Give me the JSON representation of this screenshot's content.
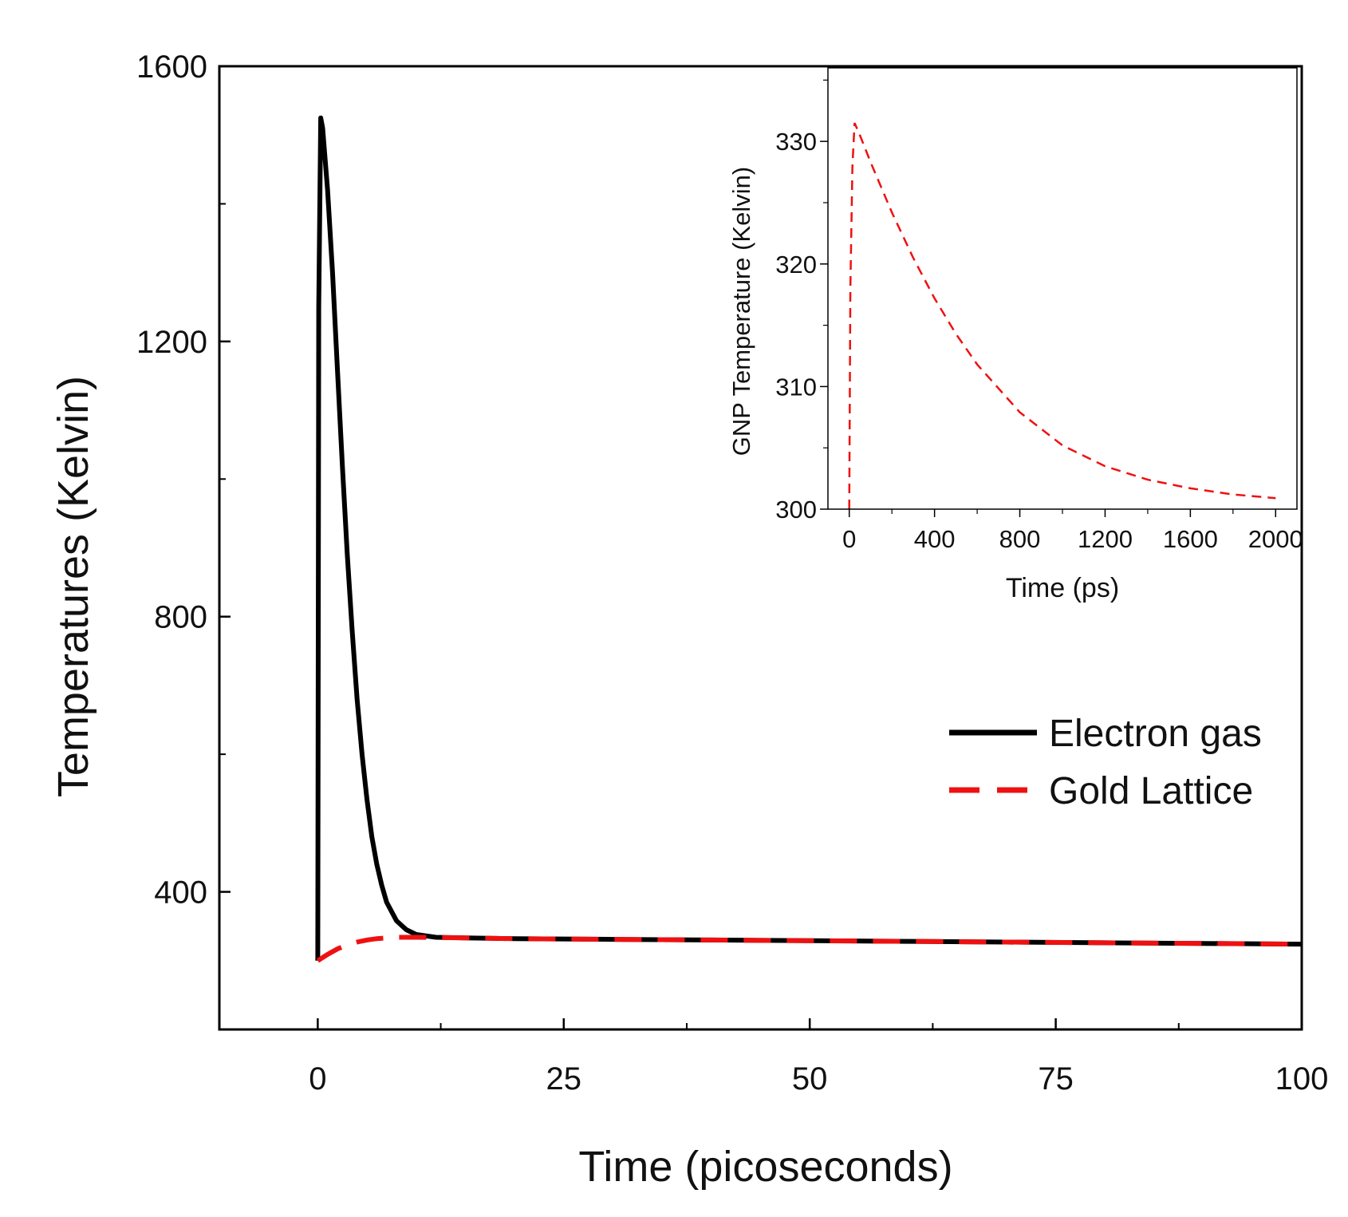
{
  "chart_data": [
    {
      "type": "line",
      "title": "",
      "xlabel": "Time (picoseconds)",
      "ylabel": "Temperatures (Kelvin)",
      "xlim": [
        -10,
        100
      ],
      "ylim": [
        200,
        1600
      ],
      "xticks": [
        0,
        25,
        50,
        75,
        100
      ],
      "yticks": [
        400,
        800,
        1200,
        1600
      ],
      "legend_position": "right-middle",
      "series": [
        {
          "name": "Electron gas",
          "color": "#000000",
          "style": "solid",
          "x": [
            0,
            0,
            0.1,
            0.3,
            0.5,
            1,
            1.5,
            2,
            2.5,
            3,
            3.5,
            4,
            4.5,
            5,
            5.5,
            6,
            6.5,
            7,
            8,
            9,
            10,
            12,
            15,
            20,
            30,
            40,
            50,
            60,
            70,
            80,
            90,
            100
          ],
          "y": [
            300,
            300,
            1250,
            1525,
            1510,
            1420,
            1300,
            1160,
            1020,
            890,
            780,
            680,
            600,
            535,
            480,
            440,
            410,
            385,
            358,
            345,
            338,
            334,
            333,
            332,
            331,
            330,
            329,
            328,
            327,
            326,
            325,
            324
          ]
        },
        {
          "name": "Gold Lattice",
          "color": "#ee1111",
          "style": "dashed",
          "x": [
            0,
            1,
            2,
            3,
            4,
            5,
            6,
            7,
            8,
            10,
            15,
            20,
            30,
            40,
            50,
            60,
            70,
            80,
            90,
            100
          ],
          "y": [
            300,
            309,
            317,
            323,
            327,
            330,
            332,
            333,
            334,
            334,
            333,
            332,
            331,
            330,
            329,
            328,
            327,
            326,
            325,
            324
          ]
        }
      ]
    },
    {
      "type": "line",
      "title": "",
      "xlabel": "Time (ps)",
      "ylabel": "GNP Temperature (Kelvin)",
      "xlim": [
        -100,
        2100
      ],
      "ylim": [
        300,
        336
      ],
      "xticks": [
        0,
        400,
        800,
        1200,
        1600,
        2000
      ],
      "yticks": [
        300,
        310,
        320,
        330
      ],
      "series": [
        {
          "name": "GNP",
          "color": "#ee1111",
          "style": "dashed",
          "x": [
            0,
            5,
            15,
            25,
            50,
            100,
            200,
            300,
            400,
            500,
            600,
            800,
            1000,
            1200,
            1400,
            1600,
            1800,
            2000
          ],
          "y": [
            300,
            318,
            328,
            331.5,
            330.5,
            328.3,
            324.2,
            320.5,
            317.2,
            314.3,
            311.8,
            307.9,
            305.2,
            303.5,
            302.4,
            301.7,
            301.2,
            300.9
          ]
        }
      ]
    }
  ]
}
